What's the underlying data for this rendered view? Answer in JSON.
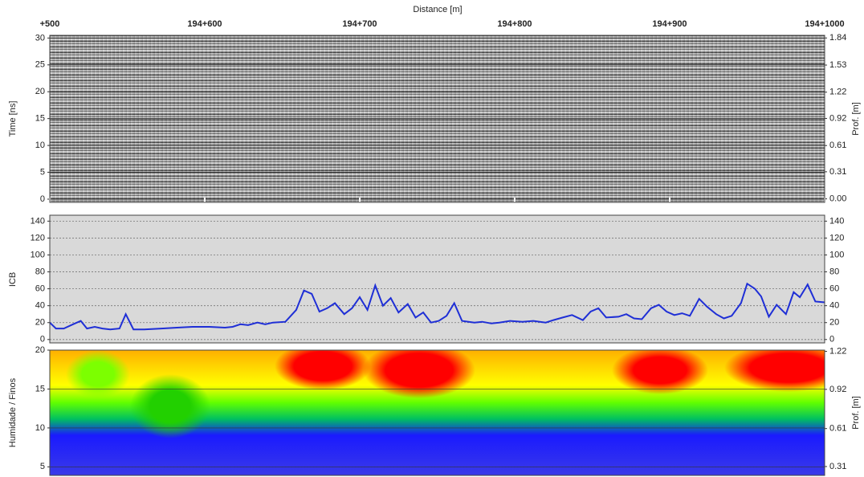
{
  "chart_data": [
    {
      "type": "radargram",
      "xlabel": "Distance [m]",
      "ylabel": "Time [ns]",
      "y2label": "Prof. [m]",
      "xlim": [
        194500,
        195000
      ],
      "xticks": [
        {
          "value": 194500,
          "label": "+500"
        },
        {
          "value": 194600,
          "label": "194+600"
        },
        {
          "value": 194700,
          "label": "194+700"
        },
        {
          "value": 194800,
          "label": "194+800"
        },
        {
          "value": 194900,
          "label": "194+900"
        },
        {
          "value": 195000,
          "label": "194+1000"
        }
      ],
      "ylim": [
        -0.6,
        30.5
      ],
      "yticks": [
        0,
        5,
        10,
        15,
        20,
        25,
        30
      ],
      "y2lim": [
        -0.04,
        1.87
      ],
      "y2ticks": [
        {
          "value": 0,
          "label": "0.00"
        },
        0.31,
        0.61,
        0.92,
        1.22,
        1.53,
        1.84
      ],
      "grid": true
    },
    {
      "type": "line",
      "ylabel": "ICB",
      "xlim": [
        194500,
        195000
      ],
      "x": [
        194500,
        194504,
        194509,
        194515,
        194520,
        194524,
        194529,
        194534,
        194539,
        194545,
        194549,
        194554,
        194561,
        194572,
        194582,
        194592,
        194603,
        194613,
        194618,
        194623,
        194628,
        194634,
        194639,
        194644,
        194652,
        194659,
        194664,
        194669,
        194674,
        194679,
        194684,
        194690,
        194695,
        194700,
        194705,
        194710,
        194715,
        194720,
        194725,
        194731,
        194736,
        194741,
        194746,
        194751,
        194756,
        194761,
        194766,
        194774,
        194779,
        194785,
        194790,
        194797,
        194805,
        194812,
        194820,
        194825,
        194831,
        194837,
        194844,
        194849,
        194854,
        194859,
        194867,
        194872,
        194877,
        194882,
        194888,
        194893,
        194898,
        194903,
        194908,
        194913,
        194919,
        194924,
        194930,
        194935,
        194940,
        194946,
        194950,
        194955,
        194959,
        194964,
        194969,
        194975,
        194980,
        194984,
        194989,
        194994,
        195000
      ],
      "series": [
        {
          "color": "#1f2fd6",
          "values": [
            20,
            13,
            13,
            18,
            22,
            13,
            15,
            13,
            12,
            13,
            30,
            12,
            12,
            13,
            14,
            15,
            15,
            14,
            15,
            18,
            17,
            20,
            18,
            20,
            21,
            35,
            58,
            54,
            33,
            37,
            43,
            30,
            37,
            50,
            35,
            64,
            40,
            49,
            32,
            42,
            26,
            32,
            20,
            22,
            28,
            43,
            22,
            20,
            21,
            19,
            20,
            22,
            21,
            22,
            20,
            23,
            26,
            29,
            23,
            33,
            37,
            26,
            27,
            30,
            25,
            24,
            37,
            41,
            33,
            29,
            31,
            28,
            48,
            39,
            30,
            25,
            28,
            43,
            66,
            60,
            51,
            27,
            41,
            30,
            56,
            50,
            65,
            45,
            44
          ]
        }
      ],
      "ylim": [
        -4,
        147
      ],
      "yticks": [
        0,
        20,
        40,
        60,
        80,
        100,
        120,
        140
      ],
      "grid": true
    },
    {
      "type": "heatmap",
      "ylabel": "Humidade / Finos",
      "y2label": "Prof. [m]",
      "ylim": [
        3.9,
        20
      ],
      "yticks": [
        5,
        10,
        15,
        20
      ],
      "y2lim": [
        0.24,
        1.23
      ],
      "y2ticks": [
        0.31,
        0.61,
        0.92,
        1.22
      ],
      "grid": true
    }
  ]
}
